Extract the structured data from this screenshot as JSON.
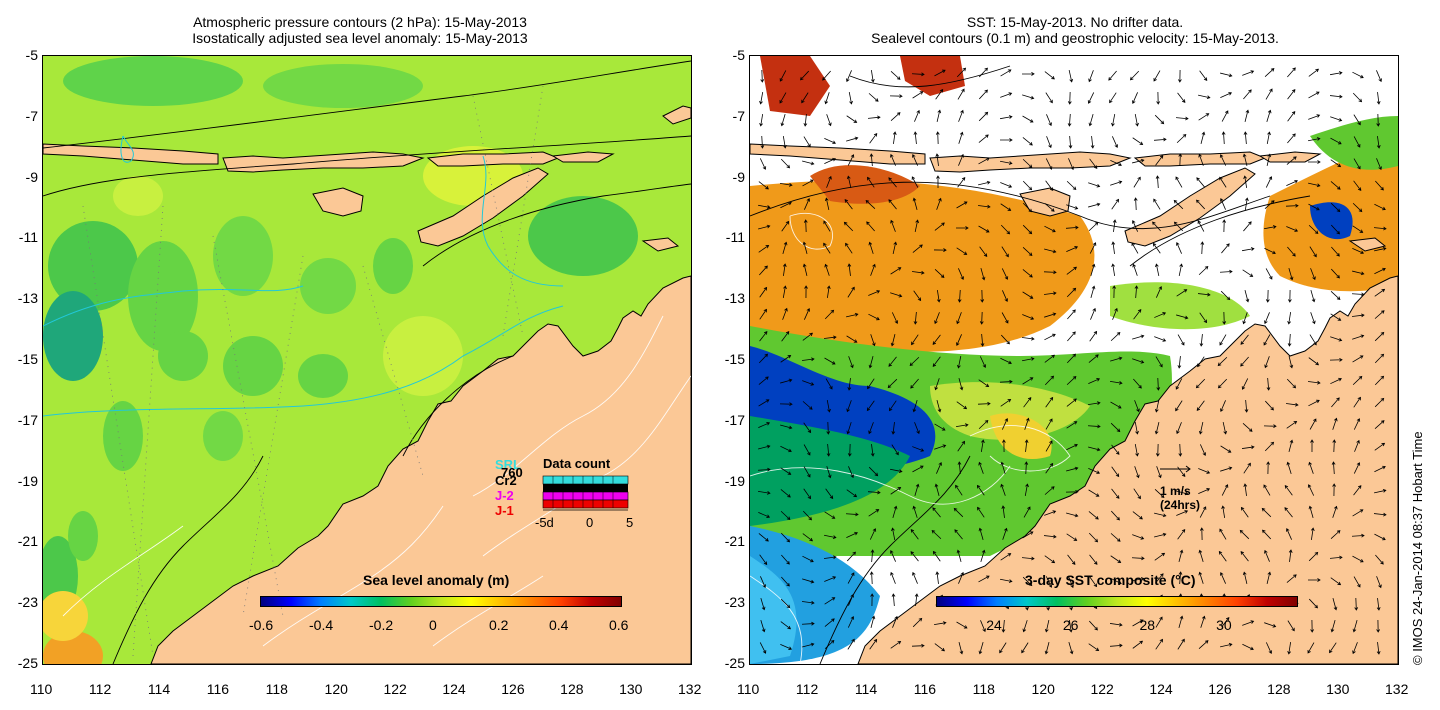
{
  "left_panel": {
    "title_line1": "Atmospheric pressure contours (2 hPa): 15-May-2013",
    "title_line2": "Isostatically adjusted sea level anomaly: 15-May-2013",
    "colorbar": {
      "title": "Sea level anomaly (m)",
      "ticks": [
        "-0.6",
        "-0.4",
        "-0.2",
        "0",
        "0.2",
        "0.4",
        "0.6"
      ],
      "range": [
        -0.6,
        0.6
      ]
    },
    "inset": {
      "title": "Data count",
      "missions": [
        {
          "name": "SRL",
          "color": "#33dddd"
        },
        {
          "name": "Cr2",
          "color": "#000000"
        },
        {
          "name": "J-2",
          "color": "#ee00ee"
        },
        {
          "name": "J-1",
          "color": "#ee0000"
        }
      ],
      "extra_label": "760",
      "axis_ticks": [
        "-5d",
        "0",
        "5"
      ]
    }
  },
  "right_panel": {
    "title_line1": "SST: 15-May-2013. No drifter data.",
    "title_line2": "Sealevel contours (0.1 m) and geostrophic velocity: 15-May-2013.",
    "colorbar": {
      "title": "3-day SST composite (°C)",
      "ticks": [
        "24",
        "26",
        "28",
        "30"
      ],
      "range": [
        22.4,
        31.8
      ]
    },
    "velocity_scale": {
      "line1": "1 m/s",
      "line2": "(24hrs)"
    }
  },
  "axes": {
    "lon_ticks": [
      "110",
      "112",
      "114",
      "116",
      "118",
      "120",
      "122",
      "124",
      "126",
      "128",
      "130",
      "132"
    ],
    "lat_ticks": [
      "-5",
      "-7",
      "-9",
      "-11",
      "-13",
      "-15",
      "-17",
      "-19",
      "-21",
      "-23",
      "-25"
    ],
    "lon_range": [
      110,
      132
    ],
    "lat_range": [
      -25,
      -5
    ]
  },
  "credit": "© IMOS 24-Jan-2014 08:37 Hobart Time",
  "colors": {
    "land": "#fbc896",
    "sla_background": "#a8e83a",
    "no_data": "#ffffff"
  }
}
